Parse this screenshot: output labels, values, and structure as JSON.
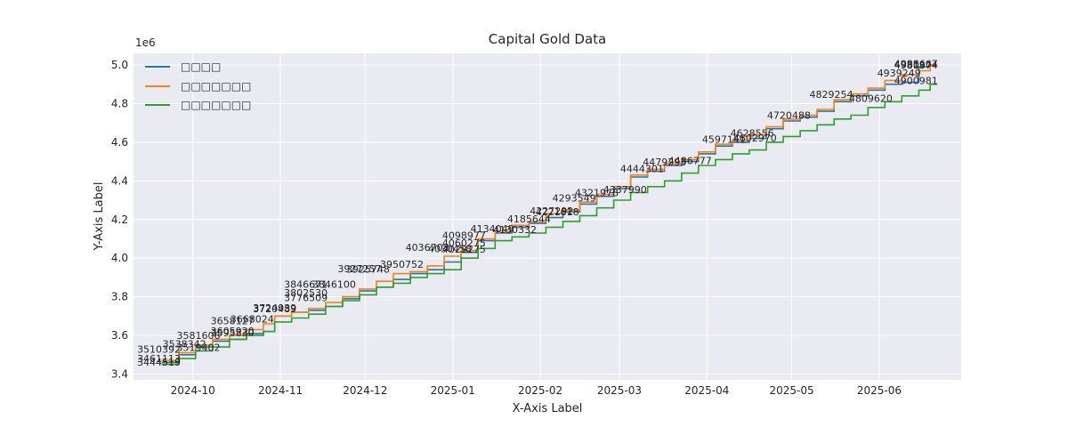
{
  "chart_data": {
    "type": "line",
    "title": "Capital Gold Data",
    "xlabel": "X-Axis Label",
    "ylabel": "Y-Axis Label",
    "y_offset_label": "1e6",
    "x_tick_labels": [
      "2024-10",
      "2024-11",
      "2024-12",
      "2025-01",
      "2025-02",
      "2025-03",
      "2025-04",
      "2025-05",
      "2025-06"
    ],
    "x_ticks": [
      "2024-10-01",
      "2024-11-01",
      "2024-12-01",
      "2025-01-01",
      "2025-02-01",
      "2025-03-01",
      "2025-04-01",
      "2025-05-01",
      "2025-06-01"
    ],
    "y_ticks": [
      3.4,
      3.6,
      3.8,
      4.0,
      4.2,
      4.4,
      4.6,
      4.8,
      5.0
    ],
    "x_range": [
      "2024-09-10",
      "2025-06-30"
    ],
    "ylim": [
      3370000,
      5060000
    ],
    "grid": true,
    "legend_position": "top-left",
    "colors": [
      "#1f77b4",
      "#ff7f0e",
      "#2ca02c"
    ],
    "series": [
      {
        "name": "□□□□",
        "points": [
          [
            "2024-09-20",
            3460000
          ],
          [
            "2024-09-26",
            3500000
          ],
          [
            "2024-10-02",
            3540000
          ],
          [
            "2024-10-08",
            3570000
          ],
          [
            "2024-10-14",
            3580000
          ],
          [
            "2024-10-20",
            3610000
          ],
          [
            "2024-10-26",
            3620000
          ],
          [
            "2024-10-30",
            3700000
          ],
          [
            "2024-11-05",
            3720000
          ],
          [
            "2024-11-11",
            3730000
          ],
          [
            "2024-11-17",
            3750000
          ],
          [
            "2024-11-23",
            3790000
          ],
          [
            "2024-11-29",
            3830000
          ],
          [
            "2024-12-05",
            3850000
          ],
          [
            "2024-12-11",
            3890000
          ],
          [
            "2024-12-17",
            3920000
          ],
          [
            "2024-12-23",
            3940000
          ],
          [
            "2024-12-29",
            3980000
          ],
          [
            "2025-01-04",
            4030000
          ],
          [
            "2025-01-10",
            4090000
          ],
          [
            "2025-01-16",
            4130000
          ],
          [
            "2025-01-22",
            4160000
          ],
          [
            "2025-01-28",
            4180000
          ],
          [
            "2025-02-03",
            4210000
          ],
          [
            "2025-02-09",
            4240000
          ],
          [
            "2025-02-15",
            4280000
          ],
          [
            "2025-02-21",
            4320000
          ],
          [
            "2025-02-27",
            4360000
          ],
          [
            "2025-03-05",
            4420000
          ],
          [
            "2025-03-11",
            4450000
          ],
          [
            "2025-03-17",
            4480000
          ],
          [
            "2025-03-23",
            4500000
          ],
          [
            "2025-03-29",
            4540000
          ],
          [
            "2025-04-04",
            4580000
          ],
          [
            "2025-04-10",
            4600000
          ],
          [
            "2025-04-16",
            4620000
          ],
          [
            "2025-04-22",
            4670000
          ],
          [
            "2025-04-28",
            4710000
          ],
          [
            "2025-05-04",
            4730000
          ],
          [
            "2025-05-10",
            4760000
          ],
          [
            "2025-05-16",
            4810000
          ],
          [
            "2025-05-22",
            4840000
          ],
          [
            "2025-05-28",
            4870000
          ],
          [
            "2025-06-03",
            4900000
          ],
          [
            "2025-06-09",
            4910000
          ],
          [
            "2025-06-15",
            4990000
          ],
          [
            "2025-06-19",
            5000000
          ]
        ]
      },
      {
        "name": "□□□□□□□",
        "points": [
          [
            "2024-09-20",
            3470000
          ],
          [
            "2024-09-26",
            3510000
          ],
          [
            "2024-10-02",
            3550000
          ],
          [
            "2024-10-08",
            3580000
          ],
          [
            "2024-10-14",
            3600000
          ],
          [
            "2024-10-20",
            3630000
          ],
          [
            "2024-10-26",
            3660000
          ],
          [
            "2024-10-30",
            3700000
          ],
          [
            "2024-11-05",
            3720000
          ],
          [
            "2024-11-11",
            3740000
          ],
          [
            "2024-11-17",
            3770000
          ],
          [
            "2024-11-23",
            3800000
          ],
          [
            "2024-11-29",
            3840000
          ],
          [
            "2024-12-05",
            3880000
          ],
          [
            "2024-12-11",
            3920000
          ],
          [
            "2024-12-17",
            3930000
          ],
          [
            "2024-12-23",
            3960000
          ],
          [
            "2024-12-29",
            4010000
          ],
          [
            "2025-01-04",
            4040000
          ],
          [
            "2025-01-10",
            4100000
          ],
          [
            "2025-01-16",
            4140000
          ],
          [
            "2025-01-22",
            4170000
          ],
          [
            "2025-01-28",
            4190000
          ],
          [
            "2025-02-03",
            4230000
          ],
          [
            "2025-02-09",
            4250000
          ],
          [
            "2025-02-15",
            4290000
          ],
          [
            "2025-02-21",
            4330000
          ],
          [
            "2025-02-27",
            4370000
          ],
          [
            "2025-03-05",
            4430000
          ],
          [
            "2025-03-11",
            4460000
          ],
          [
            "2025-03-17",
            4490000
          ],
          [
            "2025-03-23",
            4510000
          ],
          [
            "2025-03-29",
            4550000
          ],
          [
            "2025-04-04",
            4590000
          ],
          [
            "2025-04-10",
            4610000
          ],
          [
            "2025-04-16",
            4640000
          ],
          [
            "2025-04-22",
            4680000
          ],
          [
            "2025-04-28",
            4720000
          ],
          [
            "2025-05-04",
            4740000
          ],
          [
            "2025-05-10",
            4770000
          ],
          [
            "2025-05-16",
            4820000
          ],
          [
            "2025-05-22",
            4850000
          ],
          [
            "2025-05-28",
            4880000
          ],
          [
            "2025-06-03",
            4920000
          ],
          [
            "2025-06-09",
            4950000
          ],
          [
            "2025-06-15",
            4970000
          ],
          [
            "2025-06-19",
            5000000
          ]
        ]
      },
      {
        "name": "□□□□□□□",
        "points": [
          [
            "2024-09-20",
            3450000
          ],
          [
            "2024-09-26",
            3480000
          ],
          [
            "2024-10-02",
            3520000
          ],
          [
            "2024-10-08",
            3540000
          ],
          [
            "2024-10-14",
            3580000
          ],
          [
            "2024-10-20",
            3600000
          ],
          [
            "2024-10-26",
            3620000
          ],
          [
            "2024-10-30",
            3670000
          ],
          [
            "2024-11-05",
            3690000
          ],
          [
            "2024-11-11",
            3710000
          ],
          [
            "2024-11-17",
            3750000
          ],
          [
            "2024-11-23",
            3780000
          ],
          [
            "2024-11-29",
            3810000
          ],
          [
            "2024-12-05",
            3850000
          ],
          [
            "2024-12-11",
            3870000
          ],
          [
            "2024-12-17",
            3900000
          ],
          [
            "2024-12-23",
            3920000
          ],
          [
            "2024-12-29",
            3940000
          ],
          [
            "2025-01-04",
            4000000
          ],
          [
            "2025-01-10",
            4050000
          ],
          [
            "2025-01-16",
            4090000
          ],
          [
            "2025-01-22",
            4110000
          ],
          [
            "2025-01-28",
            4130000
          ],
          [
            "2025-02-03",
            4160000
          ],
          [
            "2025-02-09",
            4190000
          ],
          [
            "2025-02-15",
            4220000
          ],
          [
            "2025-02-21",
            4260000
          ],
          [
            "2025-02-27",
            4300000
          ],
          [
            "2025-03-05",
            4340000
          ],
          [
            "2025-03-11",
            4370000
          ],
          [
            "2025-03-17",
            4400000
          ],
          [
            "2025-03-23",
            4440000
          ],
          [
            "2025-03-29",
            4480000
          ],
          [
            "2025-04-04",
            4510000
          ],
          [
            "2025-04-10",
            4540000
          ],
          [
            "2025-04-16",
            4560000
          ],
          [
            "2025-04-22",
            4600000
          ],
          [
            "2025-04-28",
            4630000
          ],
          [
            "2025-05-04",
            4660000
          ],
          [
            "2025-05-10",
            4690000
          ],
          [
            "2025-05-16",
            4720000
          ],
          [
            "2025-05-22",
            4740000
          ],
          [
            "2025-05-28",
            4780000
          ],
          [
            "2025-06-03",
            4810000
          ],
          [
            "2025-06-09",
            4840000
          ],
          [
            "2025-06-15",
            4870000
          ],
          [
            "2025-06-19",
            4900000
          ]
        ]
      }
    ],
    "annotations": [
      {
        "date": "2024-09-19",
        "value": 3444519,
        "text": "3444519"
      },
      {
        "date": "2024-09-19",
        "value": 3461113,
        "text": "3461113"
      },
      {
        "date": "2024-09-19",
        "value": 3510392,
        "text": "3510392"
      },
      {
        "date": "2024-09-28",
        "value": 3538342,
        "text": "3538342"
      },
      {
        "date": "2024-10-03",
        "value": 3581606,
        "text": "3581606"
      },
      {
        "date": "2024-10-03",
        "value": 3519402,
        "text": "3519402"
      },
      {
        "date": "2024-10-15",
        "value": 3658127,
        "text": "3658127"
      },
      {
        "date": "2024-10-15",
        "value": 3605920,
        "text": "3605920"
      },
      {
        "date": "2024-10-15",
        "value": 3595830,
        "text": "3595830"
      },
      {
        "date": "2024-10-22",
        "value": 3668024,
        "text": "3668024"
      },
      {
        "date": "2024-10-30",
        "value": 3724939,
        "text": "3724939"
      },
      {
        "date": "2024-10-30",
        "value": 3720489,
        "text": "3720489"
      },
      {
        "date": "2024-11-10",
        "value": 3846671,
        "text": "3846671"
      },
      {
        "date": "2024-11-10",
        "value": 3802530,
        "text": "3802530"
      },
      {
        "date": "2024-11-10",
        "value": 3776509,
        "text": "3776509"
      },
      {
        "date": "2024-11-20",
        "value": 3846100,
        "text": "3846100"
      },
      {
        "date": "2024-11-29",
        "value": 3927257,
        "text": "3927257"
      },
      {
        "date": "2024-12-02",
        "value": 3925748,
        "text": "3925748"
      },
      {
        "date": "2024-12-14",
        "value": 3950752,
        "text": "3950752"
      },
      {
        "date": "2024-12-23",
        "value": 4036703,
        "text": "4036703"
      },
      {
        "date": "2024-12-31",
        "value": 4030458,
        "text": "4030458"
      },
      {
        "date": "2025-01-05",
        "value": 4098977,
        "text": "4098977"
      },
      {
        "date": "2025-01-05",
        "value": 4060275,
        "text": "4060275"
      },
      {
        "date": "2025-01-05",
        "value": 4029275,
        "text": "4029275"
      },
      {
        "date": "2025-01-15",
        "value": 4134049,
        "text": "4134049"
      },
      {
        "date": "2025-01-23",
        "value": 4130332,
        "text": "4130332"
      },
      {
        "date": "2025-01-28",
        "value": 4185644,
        "text": "4185644"
      },
      {
        "date": "2025-02-05",
        "value": 4227292,
        "text": "4227292"
      },
      {
        "date": "2025-02-07",
        "value": 4221618,
        "text": "4221618"
      },
      {
        "date": "2025-02-13",
        "value": 4293549,
        "text": "4293549"
      },
      {
        "date": "2025-02-21",
        "value": 4321978,
        "text": "4321978"
      },
      {
        "date": "2025-03-03",
        "value": 4337990,
        "text": "4337990"
      },
      {
        "date": "2025-03-09",
        "value": 4444301,
        "text": "4444301"
      },
      {
        "date": "2025-03-17",
        "value": 4479293,
        "text": "4479293"
      },
      {
        "date": "2025-03-26",
        "value": 4486777,
        "text": "4486777"
      },
      {
        "date": "2025-04-07",
        "value": 4597141,
        "text": "4597141"
      },
      {
        "date": "2025-04-17",
        "value": 4628556,
        "text": "4628556"
      },
      {
        "date": "2025-04-18",
        "value": 4602970,
        "text": "4602970"
      },
      {
        "date": "2025-04-30",
        "value": 4720488,
        "text": "4720488"
      },
      {
        "date": "2025-05-15",
        "value": 4829254,
        "text": "4829254"
      },
      {
        "date": "2025-05-29",
        "value": 4809620,
        "text": "4809620"
      },
      {
        "date": "2025-06-08",
        "value": 4939249,
        "text": "4939249"
      },
      {
        "date": "2025-06-14",
        "value": 4988667,
        "text": "4988667"
      },
      {
        "date": "2025-06-14",
        "value": 4981374,
        "text": "4981374"
      },
      {
        "date": "2025-06-14",
        "value": 4980974,
        "text": "4980974"
      },
      {
        "date": "2025-06-14",
        "value": 4900981,
        "text": "4900981"
      }
    ]
  }
}
